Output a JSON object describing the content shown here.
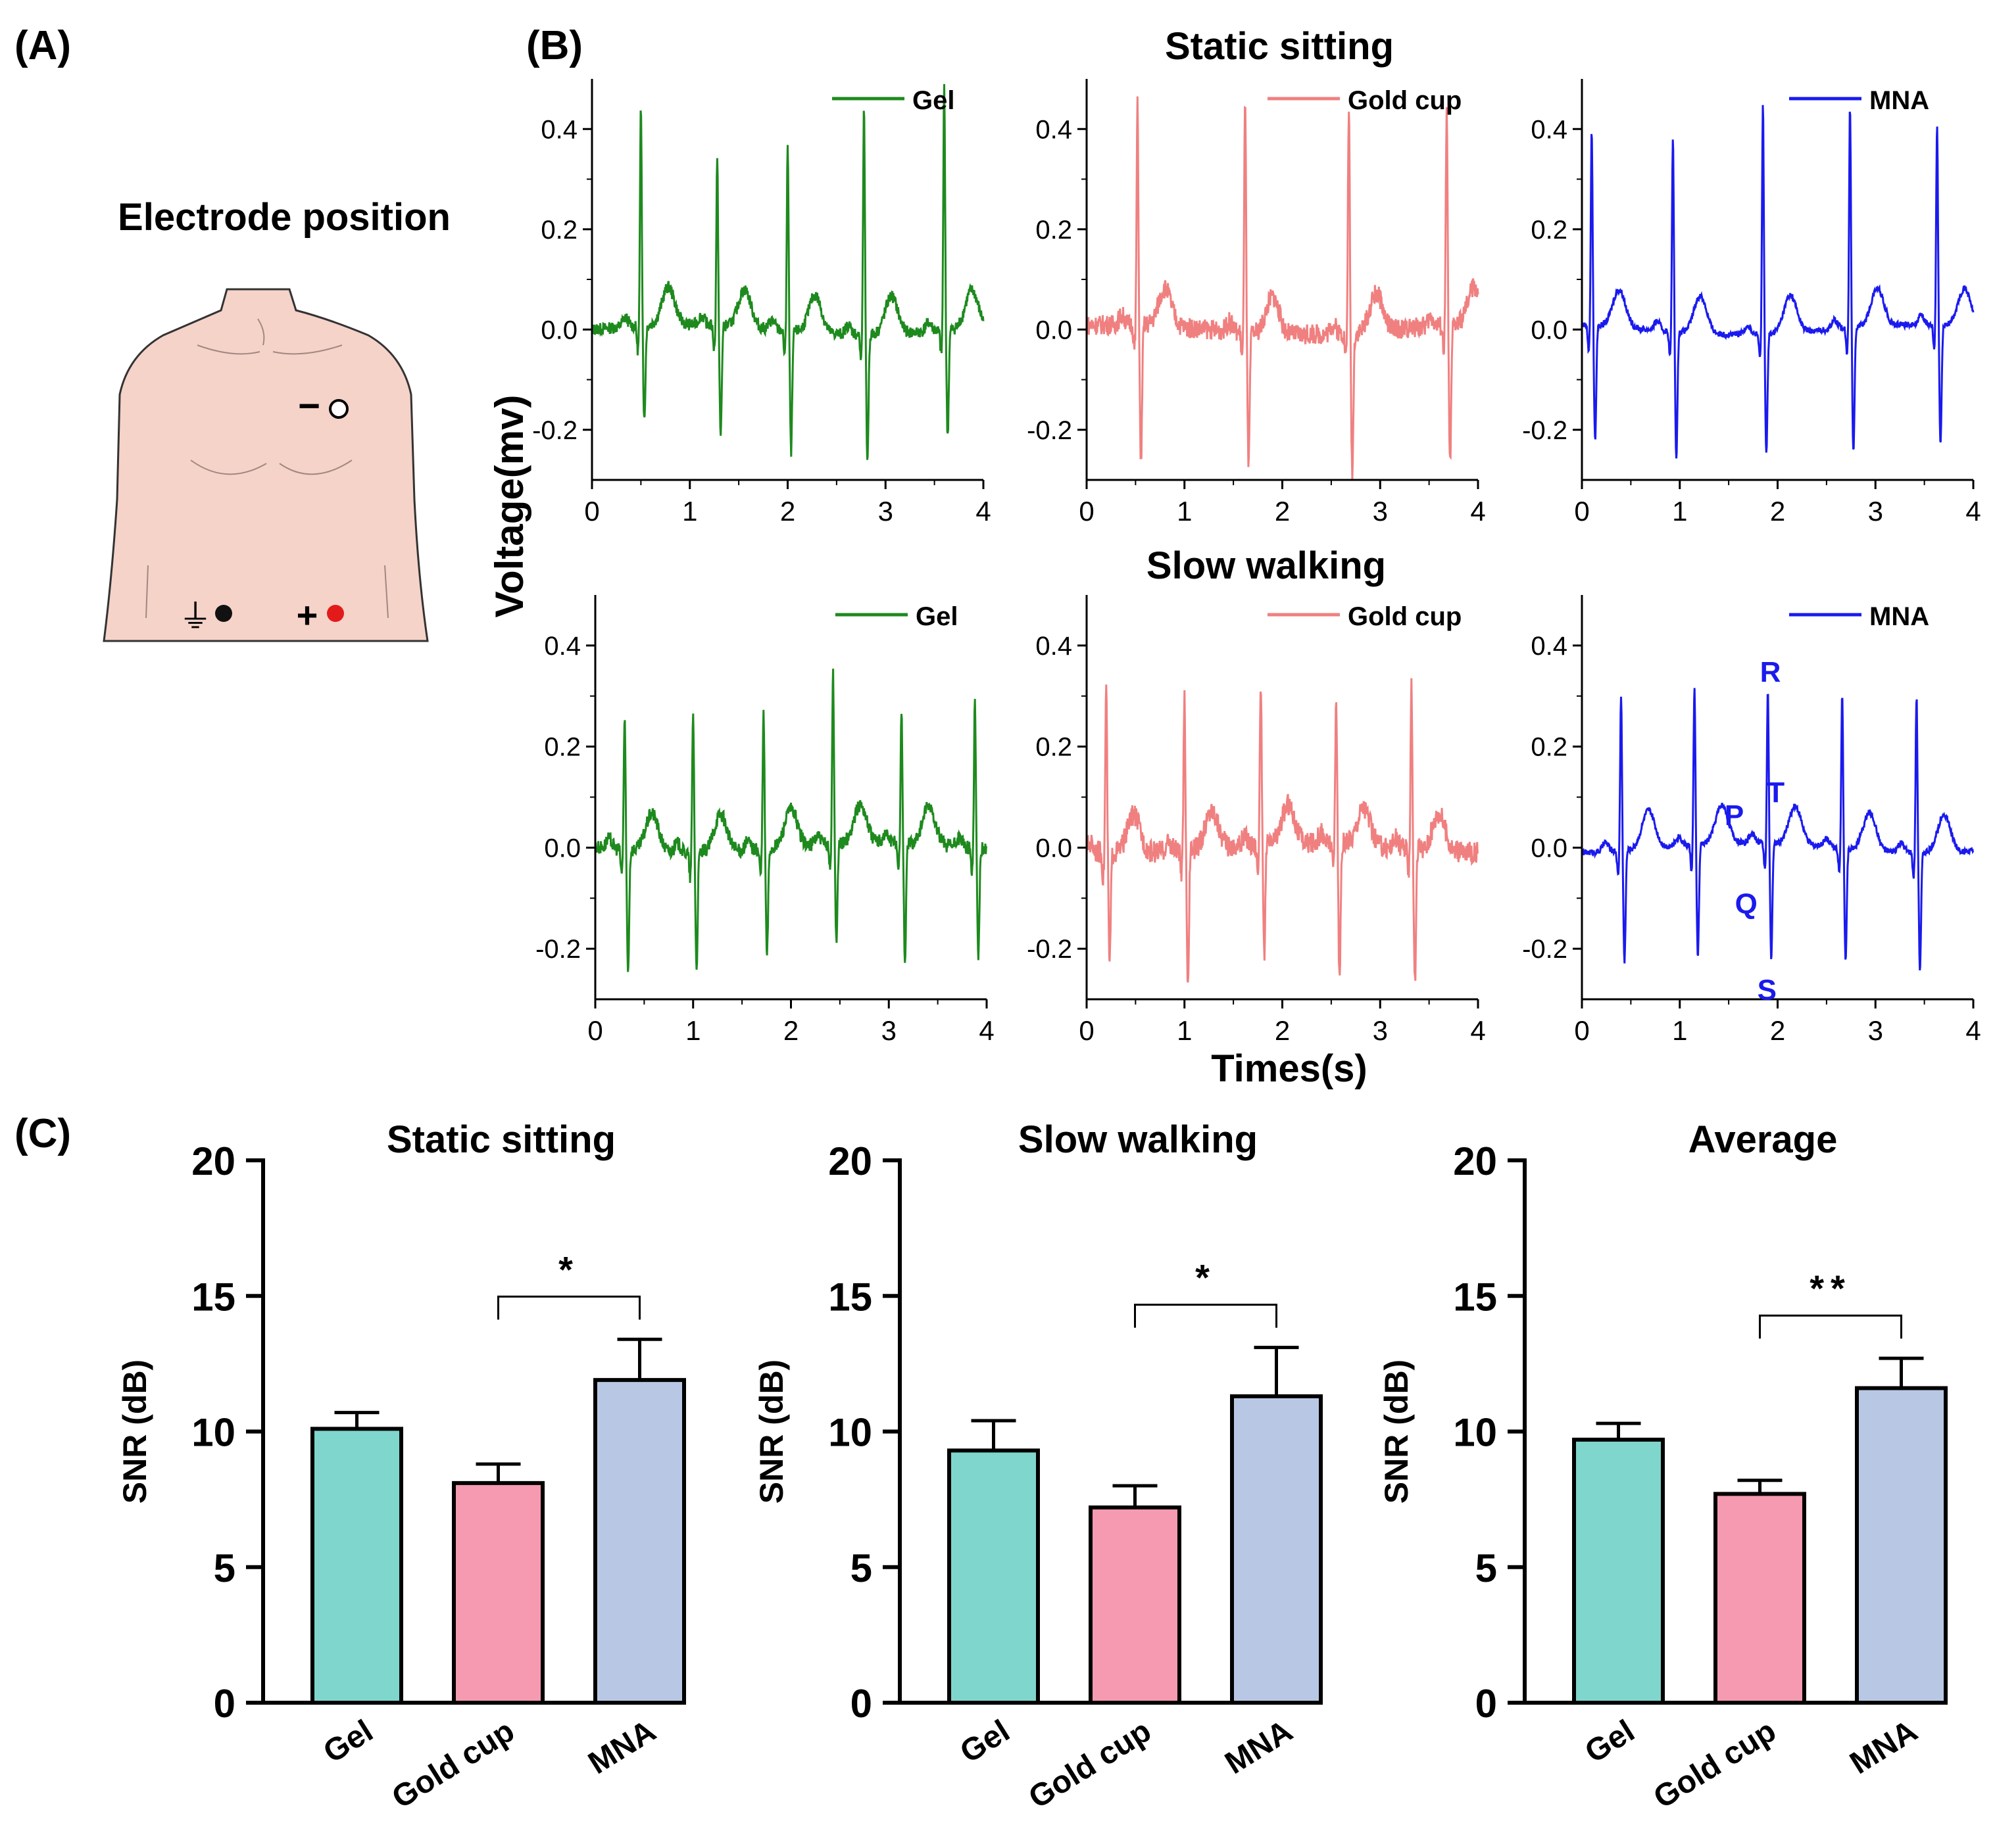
{
  "panels": {
    "a": "(A)",
    "b": "(B)",
    "c": "(C)"
  },
  "electrode": {
    "title": "Electrode position",
    "neg_sign": "−",
    "pos_sign": "+",
    "ground_symbol": "⏚"
  },
  "ecg": {
    "row_titles": [
      "Static sitting",
      "Slow walking"
    ],
    "ylabel": "Voltage(mv)",
    "xlabel": "Times(s)",
    "xticks": [
      "0",
      "1",
      "2",
      "3",
      "4"
    ],
    "yticks": [
      "-0.2",
      "0.0",
      "0.2",
      "0.4"
    ],
    "legends": [
      "Gel",
      "Gold cup",
      "MNA"
    ],
    "colors": [
      "#1e8a1e",
      "#f08080",
      "#1a1aee"
    ],
    "pqrst": [
      "P",
      "Q",
      "R",
      "S",
      "T"
    ],
    "color_ink": "#000000"
  },
  "chart_data": [
    {
      "type": "line",
      "title": "Static sitting",
      "name": "Gel",
      "xlabel": "Times(s)",
      "ylabel": "Voltage(mv)",
      "xlim": [
        0,
        4
      ],
      "ylim": [
        -0.3,
        0.5
      ],
      "r_peak_times": [
        0.5,
        1.28,
        2.0,
        2.78,
        3.6
      ],
      "r_peak_values": [
        0.44,
        0.33,
        0.37,
        0.45,
        0.49
      ],
      "s_values": [
        -0.18,
        -0.21,
        -0.23,
        -0.24,
        -0.2
      ]
    },
    {
      "type": "line",
      "title": "Static sitting",
      "name": "Gold cup",
      "xlabel": "Times(s)",
      "ylabel": "Voltage(mv)",
      "xlim": [
        0,
        4
      ],
      "ylim": [
        -0.3,
        0.5
      ],
      "r_peak_times": [
        0.52,
        1.62,
        2.68,
        3.68
      ],
      "r_peak_values": [
        0.44,
        0.48,
        0.46,
        0.43
      ],
      "s_values": [
        -0.27,
        -0.26,
        -0.27,
        -0.27
      ]
    },
    {
      "type": "line",
      "title": "Static sitting",
      "name": "MNA",
      "xlabel": "Times(s)",
      "ylabel": "Voltage(mv)",
      "xlim": [
        0,
        4
      ],
      "ylim": [
        -0.3,
        0.5
      ],
      "r_peak_times": [
        0.1,
        0.93,
        1.85,
        2.74,
        3.63
      ],
      "r_peak_values": [
        0.39,
        0.39,
        0.46,
        0.44,
        0.4
      ],
      "s_values": [
        -0.22,
        -0.24,
        -0.23,
        -0.24,
        -0.23
      ]
    },
    {
      "type": "line",
      "title": "Slow walking",
      "name": "Gel",
      "xlabel": "Times(s)",
      "ylabel": "Voltage(mv)",
      "xlim": [
        0,
        4
      ],
      "ylim": [
        -0.3,
        0.5
      ],
      "r_peak_times": [
        0.3,
        1.0,
        1.72,
        2.43,
        3.13,
        3.88
      ],
      "r_peak_values": [
        0.26,
        0.28,
        0.27,
        0.34,
        0.27,
        0.3
      ],
      "s_values": [
        -0.23,
        -0.22,
        -0.2,
        -0.18,
        -0.22,
        -0.2
      ]
    },
    {
      "type": "line",
      "title": "Slow walking",
      "name": "Gold cup",
      "xlabel": "Times(s)",
      "ylabel": "Voltage(mv)",
      "xlim": [
        0,
        4
      ],
      "ylim": [
        -0.3,
        0.5
      ],
      "r_peak_times": [
        0.2,
        1.0,
        1.78,
        2.55,
        3.32
      ],
      "r_peak_values": [
        0.33,
        0.3,
        0.33,
        0.3,
        0.33
      ],
      "s_values": [
        -0.21,
        -0.25,
        -0.21,
        -0.26,
        -0.26
      ]
    },
    {
      "type": "line",
      "title": "Slow walking",
      "name": "MNA",
      "xlabel": "Times(s)",
      "ylabel": "Voltage(mv)",
      "xlim": [
        0,
        4
      ],
      "ylim": [
        -0.3,
        0.5
      ],
      "r_peak_times": [
        0.4,
        1.15,
        1.9,
        2.66,
        3.42
      ],
      "r_peak_values": [
        0.31,
        0.31,
        0.3,
        0.31,
        0.31
      ],
      "s_values": [
        -0.21,
        -0.21,
        -0.22,
        -0.21,
        -0.22
      ],
      "annotations": [
        "P",
        "Q",
        "R",
        "S",
        "T"
      ]
    },
    {
      "type": "bar",
      "title": "Static sitting",
      "categories": [
        "Gel",
        "Gold cup",
        "MNA"
      ],
      "values": [
        10.1,
        8.1,
        11.9
      ],
      "errors": [
        0.6,
        0.7,
        1.5
      ],
      "ylabel": "SNR (dB)",
      "ylim": [
        0,
        20
      ],
      "yticks": [
        0,
        5,
        10,
        15,
        20
      ],
      "significance": {
        "between": [
          "Gold cup",
          "MNA"
        ],
        "label": "*"
      }
    },
    {
      "type": "bar",
      "title": "Slow walking",
      "categories": [
        "Gel",
        "Gold cup",
        "MNA"
      ],
      "values": [
        9.3,
        7.2,
        11.3
      ],
      "errors": [
        1.1,
        0.8,
        1.8
      ],
      "ylabel": "SNR (dB)",
      "ylim": [
        0,
        20
      ],
      "yticks": [
        0,
        5,
        10,
        15,
        20
      ],
      "significance": {
        "between": [
          "Gold cup",
          "MNA"
        ],
        "label": "*"
      }
    },
    {
      "type": "bar",
      "title": "Average",
      "categories": [
        "Gel",
        "Gold cup",
        "MNA"
      ],
      "values": [
        9.7,
        7.7,
        11.6
      ],
      "errors": [
        0.6,
        0.5,
        1.1
      ],
      "ylabel": "SNR (dB)",
      "ylim": [
        0,
        20
      ],
      "yticks": [
        0,
        5,
        10,
        15,
        20
      ],
      "significance": {
        "between": [
          "Gold cup",
          "MNA"
        ],
        "label": "**"
      }
    }
  ],
  "bar_colors": [
    "#7fd6cc",
    "#f59ab0",
    "#b8c8e4"
  ]
}
